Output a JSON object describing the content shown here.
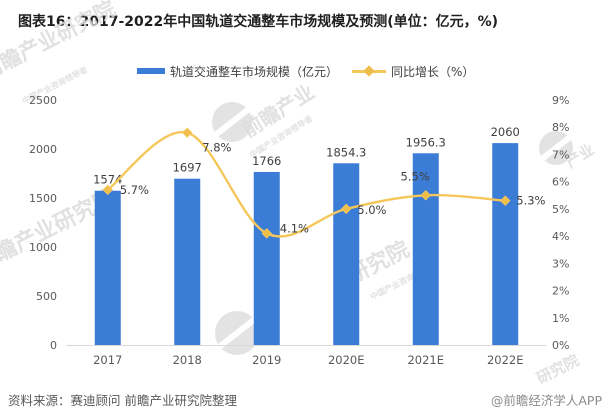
{
  "title": "图表16：2017-2022年中国轨道交通整车市场规模及预测(单位：亿元，%)",
  "legend": {
    "bar_label": "轨道交通整车市场规模（亿元）",
    "line_label": "同比增长（%）"
  },
  "footer": {
    "source": "资料来源：赛迪顾问 前瞻产业研究院整理",
    "brand": "@前瞻经济学人APP"
  },
  "watermark": {
    "text": "前瞻产业研究院",
    "subtext": "中国产业咨询领导者"
  },
  "colors": {
    "bar": "#3B7CD6",
    "line": "#F5C75B",
    "marker": "#EFBE4A",
    "axis_text": "#595959",
    "data_label": "#404040",
    "axis_line": "#d9d9d9",
    "watermark": "#dcdcdc"
  },
  "chart_data": {
    "type": "bar+line combo",
    "categories": [
      "2017",
      "2018",
      "2019",
      "2020E",
      "2021E",
      "2022E"
    ],
    "series": [
      {
        "name": "轨道交通整车市场规模（亿元）",
        "type": "bar",
        "axis": "left",
        "values": [
          1574,
          1697,
          1766,
          1854.3,
          1956.3,
          2060
        ],
        "labels": [
          "1574",
          "1697",
          "1766",
          "1854.3",
          "1956.3",
          "2060"
        ]
      },
      {
        "name": "同比增长（%）",
        "type": "line",
        "axis": "right",
        "values": [
          5.7,
          7.8,
          4.1,
          5.0,
          5.5,
          5.3
        ],
        "labels": [
          "5.7%",
          "7.8%",
          "4.1%",
          "5.0%",
          "5.5%",
          "5.3%"
        ]
      }
    ],
    "left_axis": {
      "min": 0,
      "max": 2500,
      "step": 500,
      "ticks": [
        "0",
        "500",
        "1000",
        "1500",
        "2000",
        "2500"
      ]
    },
    "right_axis": {
      "min": 0,
      "max": 9,
      "step": 1,
      "ticks": [
        "0%",
        "1%",
        "2%",
        "3%",
        "4%",
        "5%",
        "6%",
        "7%",
        "8%",
        "9%"
      ]
    },
    "grid": false,
    "legend_position": "top"
  }
}
